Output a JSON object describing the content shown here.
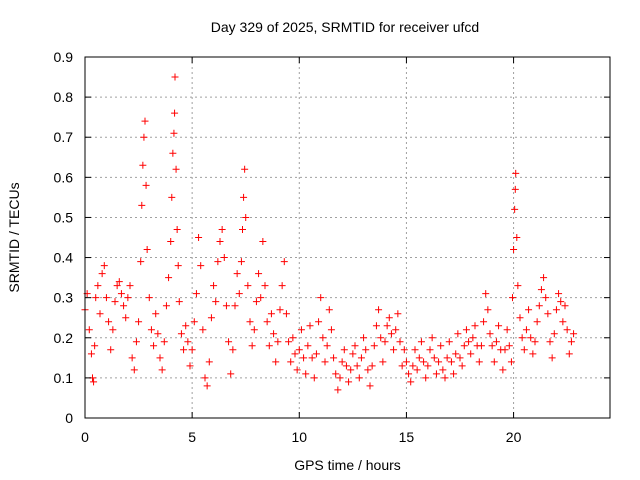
{
  "chart_data": {
    "type": "scatter",
    "title": "Day 329 of 2025, SRMTID for receiver ufcd",
    "xlabel": "GPS time / hours",
    "ylabel": "SRMTID / TECUs",
    "xlim": [
      0,
      24.5
    ],
    "ylim": [
      0,
      0.9
    ],
    "xticks": [
      0,
      5,
      10,
      15,
      20
    ],
    "xtick_labels": [
      "0",
      "5",
      "10",
      "15",
      "20"
    ],
    "yticks": [
      0,
      0.1,
      0.2,
      0.3,
      0.4,
      0.5,
      0.6,
      0.7,
      0.8,
      0.9
    ],
    "ytick_labels": [
      "0",
      "0.1",
      "0.2",
      "0.3",
      "0.4",
      "0.5",
      "0.6",
      "0.7",
      "0.8",
      "0.9"
    ],
    "grid": true,
    "marker": "+",
    "color": "#ff0000",
    "series": [
      {
        "name": "SRMTID",
        "points": [
          [
            0.0,
            0.27
          ],
          [
            0.1,
            0.31
          ],
          [
            0.2,
            0.22
          ],
          [
            0.3,
            0.16
          ],
          [
            0.35,
            0.1
          ],
          [
            0.4,
            0.09
          ],
          [
            0.45,
            0.18
          ],
          [
            0.5,
            0.3
          ],
          [
            0.6,
            0.33
          ],
          [
            0.7,
            0.26
          ],
          [
            0.8,
            0.36
          ],
          [
            0.9,
            0.38
          ],
          [
            1.0,
            0.3
          ],
          [
            1.1,
            0.24
          ],
          [
            1.2,
            0.17
          ],
          [
            1.3,
            0.22
          ],
          [
            1.4,
            0.29
          ],
          [
            1.5,
            0.33
          ],
          [
            1.6,
            0.34
          ],
          [
            1.7,
            0.31
          ],
          [
            1.8,
            0.28
          ],
          [
            1.9,
            0.25
          ],
          [
            2.0,
            0.3
          ],
          [
            2.1,
            0.33
          ],
          [
            2.2,
            0.15
          ],
          [
            2.3,
            0.12
          ],
          [
            2.4,
            0.19
          ],
          [
            2.5,
            0.24
          ],
          [
            2.6,
            0.39
          ],
          [
            2.65,
            0.53
          ],
          [
            2.7,
            0.63
          ],
          [
            2.75,
            0.7
          ],
          [
            2.8,
            0.74
          ],
          [
            2.85,
            0.58
          ],
          [
            2.9,
            0.42
          ],
          [
            3.0,
            0.3
          ],
          [
            3.1,
            0.22
          ],
          [
            3.2,
            0.18
          ],
          [
            3.3,
            0.26
          ],
          [
            3.4,
            0.21
          ],
          [
            3.5,
            0.15
          ],
          [
            3.6,
            0.12
          ],
          [
            3.7,
            0.19
          ],
          [
            3.8,
            0.28
          ],
          [
            3.9,
            0.35
          ],
          [
            4.0,
            0.44
          ],
          [
            4.05,
            0.55
          ],
          [
            4.1,
            0.66
          ],
          [
            4.15,
            0.71
          ],
          [
            4.18,
            0.76
          ],
          [
            4.2,
            0.85
          ],
          [
            4.25,
            0.62
          ],
          [
            4.3,
            0.47
          ],
          [
            4.35,
            0.38
          ],
          [
            4.4,
            0.29
          ],
          [
            4.5,
            0.21
          ],
          [
            4.6,
            0.17
          ],
          [
            4.7,
            0.23
          ],
          [
            4.8,
            0.19
          ],
          [
            4.9,
            0.13
          ],
          [
            5.0,
            0.17
          ],
          [
            5.1,
            0.24
          ],
          [
            5.2,
            0.31
          ],
          [
            5.3,
            0.45
          ],
          [
            5.4,
            0.38
          ],
          [
            5.5,
            0.22
          ],
          [
            5.6,
            0.1
          ],
          [
            5.7,
            0.08
          ],
          [
            5.8,
            0.14
          ],
          [
            5.9,
            0.25
          ],
          [
            6.0,
            0.33
          ],
          [
            6.1,
            0.29
          ],
          [
            6.2,
            0.39
          ],
          [
            6.3,
            0.44
          ],
          [
            6.4,
            0.47
          ],
          [
            6.5,
            0.4
          ],
          [
            6.6,
            0.28
          ],
          [
            6.7,
            0.19
          ],
          [
            6.8,
            0.11
          ],
          [
            6.9,
            0.17
          ],
          [
            7.0,
            0.28
          ],
          [
            7.1,
            0.36
          ],
          [
            7.2,
            0.31
          ],
          [
            7.3,
            0.39
          ],
          [
            7.35,
            0.47
          ],
          [
            7.4,
            0.55
          ],
          [
            7.45,
            0.62
          ],
          [
            7.5,
            0.5
          ],
          [
            7.6,
            0.33
          ],
          [
            7.7,
            0.24
          ],
          [
            7.8,
            0.18
          ],
          [
            7.9,
            0.22
          ],
          [
            8.0,
            0.29
          ],
          [
            8.1,
            0.36
          ],
          [
            8.2,
            0.3
          ],
          [
            8.3,
            0.44
          ],
          [
            8.4,
            0.33
          ],
          [
            8.5,
            0.24
          ],
          [
            8.6,
            0.18
          ],
          [
            8.7,
            0.26
          ],
          [
            8.8,
            0.21
          ],
          [
            8.9,
            0.14
          ],
          [
            9.0,
            0.19
          ],
          [
            9.1,
            0.27
          ],
          [
            9.2,
            0.33
          ],
          [
            9.3,
            0.39
          ],
          [
            9.4,
            0.26
          ],
          [
            9.5,
            0.19
          ],
          [
            9.6,
            0.14
          ],
          [
            9.7,
            0.2
          ],
          [
            9.8,
            0.16
          ],
          [
            9.9,
            0.12
          ],
          [
            10.0,
            0.17
          ],
          [
            10.1,
            0.22
          ],
          [
            10.2,
            0.15
          ],
          [
            10.3,
            0.11
          ],
          [
            10.4,
            0.18
          ],
          [
            10.5,
            0.23
          ],
          [
            10.6,
            0.15
          ],
          [
            10.7,
            0.1
          ],
          [
            10.8,
            0.16
          ],
          [
            10.9,
            0.24
          ],
          [
            11.0,
            0.3
          ],
          [
            11.1,
            0.2
          ],
          [
            11.2,
            0.14
          ],
          [
            11.3,
            0.18
          ],
          [
            11.4,
            0.27
          ],
          [
            11.5,
            0.22
          ],
          [
            11.6,
            0.15
          ],
          [
            11.7,
            0.11
          ],
          [
            11.8,
            0.07
          ],
          [
            11.9,
            0.1
          ],
          [
            12.0,
            0.14
          ],
          [
            12.1,
            0.17
          ],
          [
            12.2,
            0.13
          ],
          [
            12.3,
            0.09
          ],
          [
            12.4,
            0.12
          ],
          [
            12.5,
            0.16
          ],
          [
            12.6,
            0.18
          ],
          [
            12.7,
            0.13
          ],
          [
            12.8,
            0.1
          ],
          [
            12.9,
            0.15
          ],
          [
            13.0,
            0.2
          ],
          [
            13.1,
            0.17
          ],
          [
            13.2,
            0.12
          ],
          [
            13.3,
            0.08
          ],
          [
            13.4,
            0.13
          ],
          [
            13.5,
            0.18
          ],
          [
            13.6,
            0.23
          ],
          [
            13.7,
            0.27
          ],
          [
            13.8,
            0.2
          ],
          [
            13.9,
            0.14
          ],
          [
            14.0,
            0.19
          ],
          [
            14.1,
            0.23
          ],
          [
            14.2,
            0.25
          ],
          [
            14.3,
            0.21
          ],
          [
            14.4,
            0.17
          ],
          [
            14.5,
            0.22
          ],
          [
            14.6,
            0.26
          ],
          [
            14.7,
            0.19
          ],
          [
            14.8,
            0.13
          ],
          [
            14.9,
            0.17
          ],
          [
            15.0,
            0.14
          ],
          [
            15.1,
            0.11
          ],
          [
            15.2,
            0.09
          ],
          [
            15.3,
            0.13
          ],
          [
            15.4,
            0.17
          ],
          [
            15.5,
            0.12
          ],
          [
            15.6,
            0.15
          ],
          [
            15.7,
            0.19
          ],
          [
            15.8,
            0.14
          ],
          [
            15.9,
            0.1
          ],
          [
            16.0,
            0.13
          ],
          [
            16.1,
            0.17
          ],
          [
            16.2,
            0.2
          ],
          [
            16.3,
            0.15
          ],
          [
            16.4,
            0.11
          ],
          [
            16.5,
            0.14
          ],
          [
            16.6,
            0.18
          ],
          [
            16.7,
            0.12
          ],
          [
            16.8,
            0.1
          ],
          [
            16.9,
            0.15
          ],
          [
            17.0,
            0.19
          ],
          [
            17.1,
            0.14
          ],
          [
            17.2,
            0.11
          ],
          [
            17.3,
            0.16
          ],
          [
            17.4,
            0.21
          ],
          [
            17.5,
            0.15
          ],
          [
            17.6,
            0.13
          ],
          [
            17.7,
            0.18
          ],
          [
            17.8,
            0.22
          ],
          [
            17.9,
            0.19
          ],
          [
            18.0,
            0.16
          ],
          [
            18.1,
            0.2
          ],
          [
            18.2,
            0.23
          ],
          [
            18.3,
            0.18
          ],
          [
            18.4,
            0.14
          ],
          [
            18.5,
            0.18
          ],
          [
            18.6,
            0.24
          ],
          [
            18.7,
            0.31
          ],
          [
            18.8,
            0.27
          ],
          [
            18.9,
            0.21
          ],
          [
            19.0,
            0.18
          ],
          [
            19.1,
            0.14
          ],
          [
            19.2,
            0.19
          ],
          [
            19.3,
            0.23
          ],
          [
            19.4,
            0.17
          ],
          [
            19.5,
            0.12
          ],
          [
            19.6,
            0.17
          ],
          [
            19.7,
            0.22
          ],
          [
            19.8,
            0.18
          ],
          [
            19.9,
            0.14
          ],
          [
            19.95,
            0.3
          ],
          [
            20.0,
            0.42
          ],
          [
            20.05,
            0.52
          ],
          [
            20.08,
            0.57
          ],
          [
            20.1,
            0.61
          ],
          [
            20.15,
            0.45
          ],
          [
            20.2,
            0.33
          ],
          [
            20.3,
            0.25
          ],
          [
            20.4,
            0.2
          ],
          [
            20.5,
            0.17
          ],
          [
            20.6,
            0.22
          ],
          [
            20.7,
            0.27
          ],
          [
            20.8,
            0.2
          ],
          [
            20.9,
            0.16
          ],
          [
            21.0,
            0.19
          ],
          [
            21.1,
            0.24
          ],
          [
            21.2,
            0.28
          ],
          [
            21.3,
            0.32
          ],
          [
            21.4,
            0.35
          ],
          [
            21.5,
            0.3
          ],
          [
            21.6,
            0.26
          ],
          [
            21.7,
            0.19
          ],
          [
            21.8,
            0.15
          ],
          [
            21.9,
            0.21
          ],
          [
            22.0,
            0.27
          ],
          [
            22.1,
            0.31
          ],
          [
            22.2,
            0.29
          ],
          [
            22.3,
            0.24
          ],
          [
            22.4,
            0.28
          ],
          [
            22.5,
            0.22
          ],
          [
            22.6,
            0.16
          ],
          [
            22.7,
            0.19
          ],
          [
            22.8,
            0.21
          ]
        ]
      }
    ]
  }
}
